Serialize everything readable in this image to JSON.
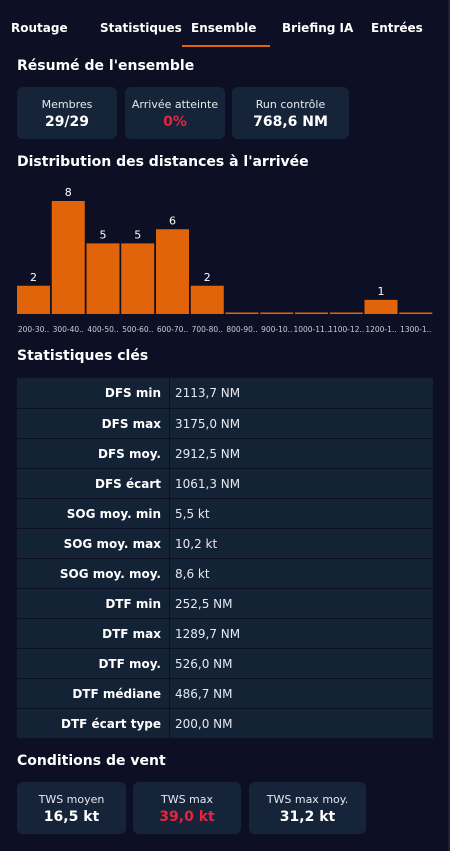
{
  "tabs": [
    {
      "label": "Routage",
      "active": false
    },
    {
      "label": "Statistiques",
      "active": false
    },
    {
      "label": "Ensemble",
      "active": true
    },
    {
      "label": "Briefing IA",
      "active": false
    },
    {
      "label": "Entrées",
      "active": false
    }
  ],
  "summary": {
    "title": "Résumé de l'ensemble",
    "cards": [
      {
        "label": "Membres",
        "value": "29/29"
      },
      {
        "label": "Arrivée atteinte",
        "value": "0%"
      },
      {
        "label": "Run contrôle",
        "value": "768,6 NM"
      }
    ]
  },
  "distribution": {
    "title": "Distribution des distances à l'arrivée"
  },
  "chart_data": {
    "type": "bar",
    "title": "Distribution des distances à l'arrivée",
    "categories": [
      "200-30..",
      "300-40..",
      "400-50..",
      "500-60..",
      "600-70..",
      "700-80..",
      "800-90..",
      "900-10..",
      "1000-11..",
      "1100-12..",
      "1200-1..",
      "1300-1.."
    ],
    "values": [
      2,
      8,
      5,
      5,
      6,
      2,
      0,
      0,
      0,
      0,
      1,
      0
    ],
    "data_labels": [
      "2",
      "8",
      "5",
      "5",
      "6",
      "2",
      "",
      "",
      "",
      "",
      "1",
      ""
    ],
    "bar_color": "#e2640a",
    "ylim": [
      0,
      8
    ],
    "grid": false
  },
  "key_stats": {
    "title": "Statistiques clés",
    "rows": [
      {
        "label": "DFS min",
        "value": "2113,7 NM"
      },
      {
        "label": "DFS max",
        "value": "3175,0 NM"
      },
      {
        "label": "DFS moy.",
        "value": "2912,5 NM"
      },
      {
        "label": "DFS écart",
        "value": "1061,3 NM"
      },
      {
        "label": "SOG moy. min",
        "value": "5,5 kt"
      },
      {
        "label": "SOG moy. max",
        "value": "10,2 kt"
      },
      {
        "label": "SOG moy. moy.",
        "value": "8,6 kt"
      },
      {
        "label": "DTF min",
        "value": "252,5 NM"
      },
      {
        "label": "DTF max",
        "value": "1289,7 NM"
      },
      {
        "label": "DTF moy.",
        "value": "526,0 NM"
      },
      {
        "label": "DTF médiane",
        "value": "486,7 NM"
      },
      {
        "label": "DTF écart type",
        "value": "200,0 NM"
      }
    ]
  },
  "wind": {
    "title": "Conditions de vent",
    "cards": [
      {
        "label": "TWS moyen",
        "value": "16,5 kt"
      },
      {
        "label": "TWS max",
        "value": "39,0 kt"
      },
      {
        "label": "TWS max moy.",
        "value": "31,2 kt"
      }
    ]
  },
  "colors": {
    "background": "#0d1024",
    "card": "#16243a",
    "accent": "#e2640a",
    "alert": "#e8243c"
  }
}
